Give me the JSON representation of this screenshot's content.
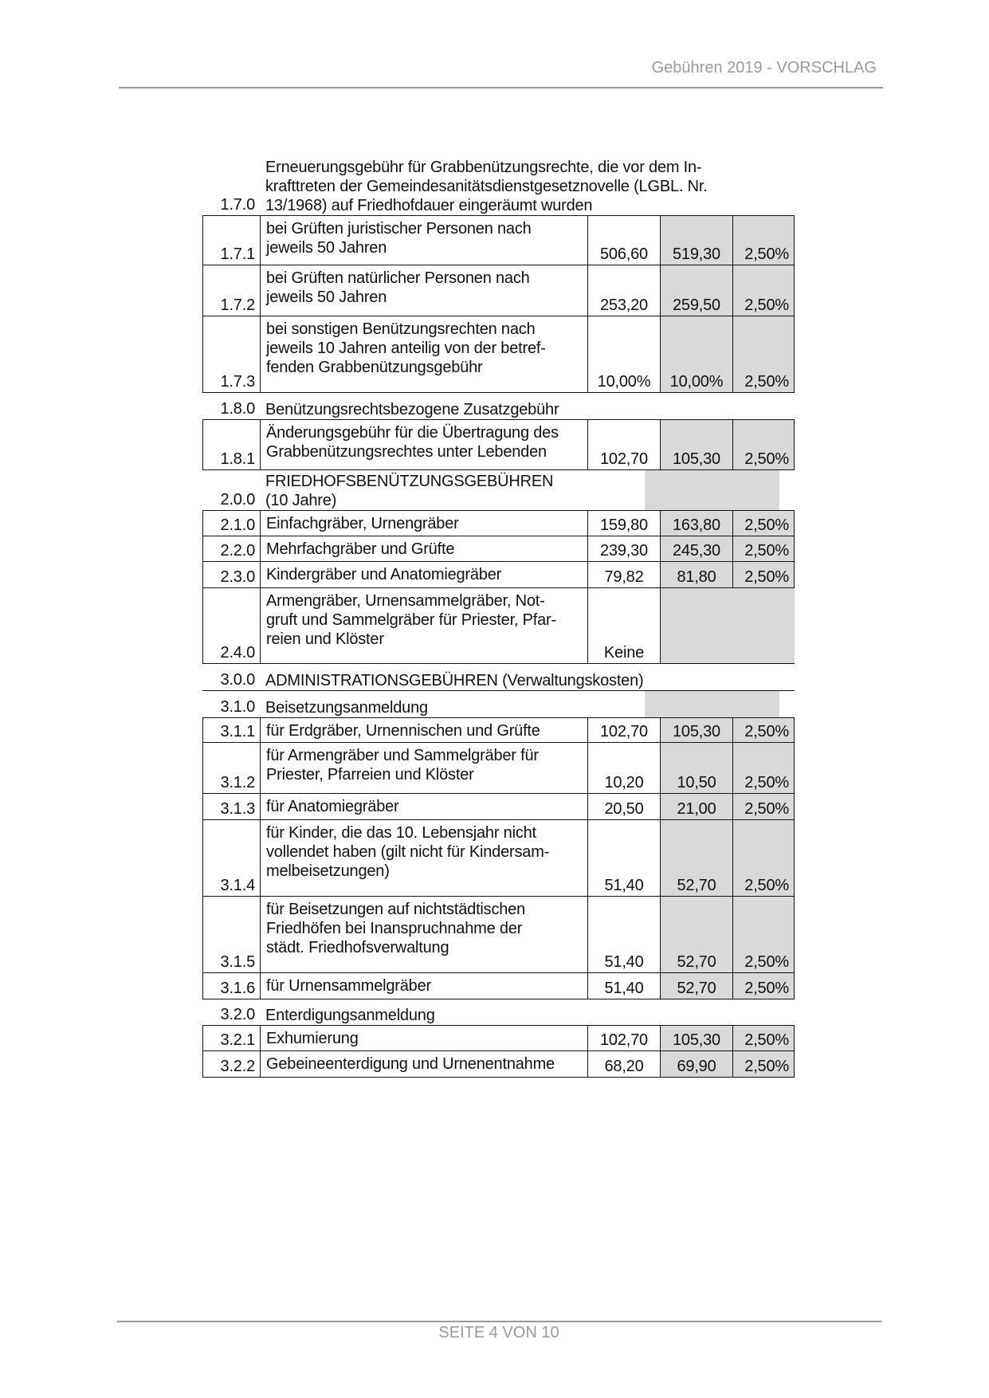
{
  "header": {
    "title": "Gebühren 2019 - VORSCHLAG"
  },
  "footer": {
    "page": "SEITE 4 VON 10"
  },
  "colors": {
    "shaded_column": "#d9d9d9",
    "header_footer_text": "#9a9a9a"
  },
  "rows": [
    {
      "type": "heading",
      "no": "1.7.0",
      "desc": "Erneuerungsgebühr für Grabbenützungsrechte, die vor dem In-\nkrafttreten der Gemeindesanitätsdienstgesetznovelle (LGBL. Nr.\n13/1968) auf Friedhofdauer eingeräumt wurden"
    },
    {
      "type": "item",
      "no": "1.7.1",
      "desc": "bei Grüften juristischer Personen nach\njeweils 50 Jahren",
      "v1": "506,60",
      "v2": "519,30",
      "v3": "2,50%"
    },
    {
      "type": "item",
      "no": "1.7.2",
      "desc": "bei Grüften natürlicher Personen nach\njeweils 50 Jahren",
      "v1": "253,20",
      "v2": "259,50",
      "v3": "2,50%"
    },
    {
      "type": "item",
      "no": "1.7.3",
      "desc": "bei sonstigen Benützungsrechten nach\njeweils 10 Jahren anteilig von der betref-\nfenden Grabbenützungsgebühr",
      "v1": "10,00%",
      "v2": "10,00%",
      "v3": "2,50%"
    },
    {
      "type": "heading",
      "no": "1.8.0",
      "desc": "Benützungsrechtsbezogene Zusatzgebühr"
    },
    {
      "type": "item",
      "no": "1.8.1",
      "desc": "Änderungsgebühr für die Übertragung des\nGrabbenützungsrechtes unter Lebenden",
      "v1": "102,70",
      "v2": "105,30",
      "v3": "2,50%"
    },
    {
      "type": "heading",
      "no": "2.0.0",
      "desc": "FRIEDHOFSBENÜTZUNGSGEBÜHREN\n(10 Jahre)",
      "shaded": true
    },
    {
      "type": "item",
      "no": "2.1.0",
      "desc": "Einfachgräber, Urnengräber",
      "v1": "159,80",
      "v2": "163,80",
      "v3": "2,50%"
    },
    {
      "type": "item",
      "no": "2.2.0",
      "desc": "Mehrfachgräber und Grüfte",
      "v1": "239,30",
      "v2": "245,30",
      "v3": "2,50%"
    },
    {
      "type": "item",
      "no": "2.3.0",
      "desc": "Kindergräber und Anatomiegräber",
      "v1": "79,82",
      "v2": "81,80",
      "v3": "2,50%"
    },
    {
      "type": "item",
      "no": "2.4.0",
      "desc": "Armengräber, Urnensammelgräber, Not-\ngruft und Sammelgräber für Priester, Pfar-\nreien und Klöster",
      "v1": "Keine",
      "v2": "",
      "v3": "",
      "merged": true
    },
    {
      "type": "heading",
      "no": "3.0.0",
      "desc": "ADMINISTRATIONSGEBÜHREN (Verwaltungskosten)",
      "rule": true
    },
    {
      "type": "heading",
      "no": "3.1.0",
      "desc": "Beisetzungsanmeldung",
      "shaded": true
    },
    {
      "type": "item",
      "no": "3.1.1",
      "desc": "für Erdgräber, Urnennischen und Grüfte",
      "v1": "102,70",
      "v2": "105,30",
      "v3": "2,50%"
    },
    {
      "type": "item",
      "no": "3.1.2",
      "desc": "für Armengräber und Sammelgräber für\nPriester, Pfarreien und Klöster",
      "v1": "10,20",
      "v2": "10,50",
      "v3": "2,50%"
    },
    {
      "type": "item",
      "no": "3.1.3",
      "desc": "für Anatomiegräber",
      "v1": "20,50",
      "v2": "21,00",
      "v3": "2,50%"
    },
    {
      "type": "item",
      "no": "3.1.4",
      "desc": "für Kinder, die das 10. Lebensjahr nicht\nvollendet haben (gilt nicht für Kindersam-\nmelbeisetzungen)",
      "v1": "51,40",
      "v2": "52,70",
      "v3": "2,50%"
    },
    {
      "type": "item",
      "no": "3.1.5",
      "desc": "für Beisetzungen auf nichtstädtischen\nFriedhöfen bei Inanspruchnahme der\nstädt. Friedhofsverwaltung",
      "v1": "51,40",
      "v2": "52,70",
      "v3": "2,50%"
    },
    {
      "type": "item",
      "no": "3.1.6",
      "desc": "für Urnensammelgräber",
      "v1": "51,40",
      "v2": "52,70",
      "v3": "2,50%"
    },
    {
      "type": "heading",
      "no": "3.2.0",
      "desc": "Enterdigungsanmeldung"
    },
    {
      "type": "item",
      "no": "3.2.1",
      "desc": "Exhumierung",
      "v1": "102,70",
      "v2": "105,30",
      "v3": "2,50%"
    },
    {
      "type": "item",
      "no": "3.2.2",
      "desc": "Gebeineenterdigung und Urnenentnahme",
      "v1": "68,20",
      "v2": "69,90",
      "v3": "2,50%"
    }
  ]
}
